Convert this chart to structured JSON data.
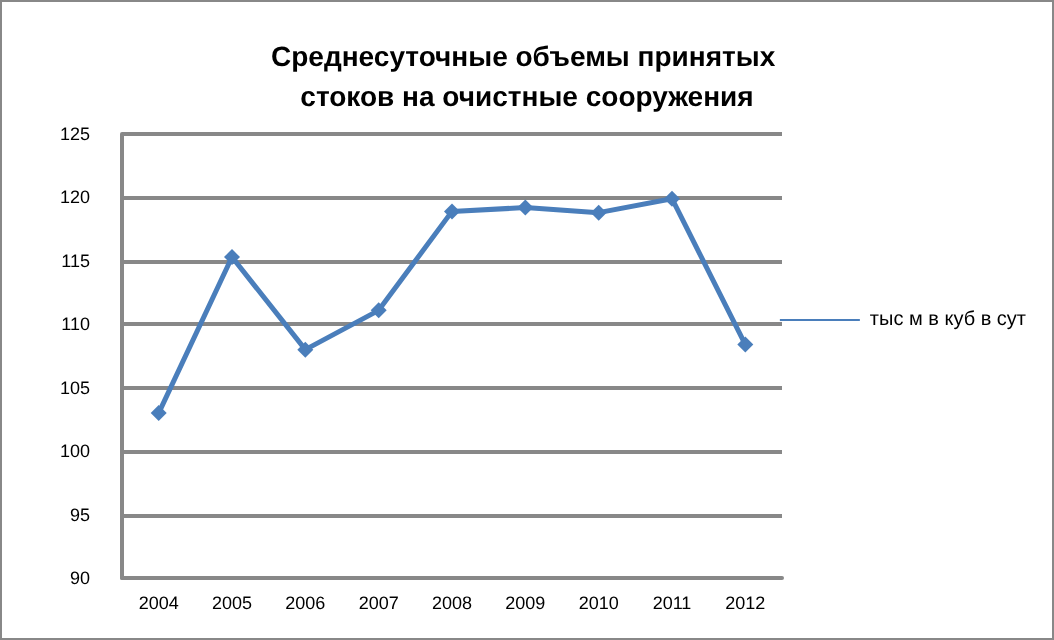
{
  "chart_data": {
    "type": "line",
    "title": "Среднесуточные объемы принятых стоков на очистные сооружения",
    "categories": [
      "2004",
      "2005",
      "2006",
      "2007",
      "2008",
      "2009",
      "2010",
      "2011",
      "2012"
    ],
    "series": [
      {
        "name": "тыс м в куб в сут",
        "color": "#4a7ebb",
        "values": [
          103.0,
          115.3,
          108.0,
          111.1,
          118.9,
          119.2,
          118.8,
          119.9,
          108.4
        ]
      }
    ],
    "ylim": [
      90,
      125
    ],
    "yticks": [
      90,
      95,
      100,
      105,
      110,
      115,
      120,
      125
    ],
    "grid": "y",
    "legend": "right",
    "marker": "diamond",
    "line_style": "solid"
  }
}
